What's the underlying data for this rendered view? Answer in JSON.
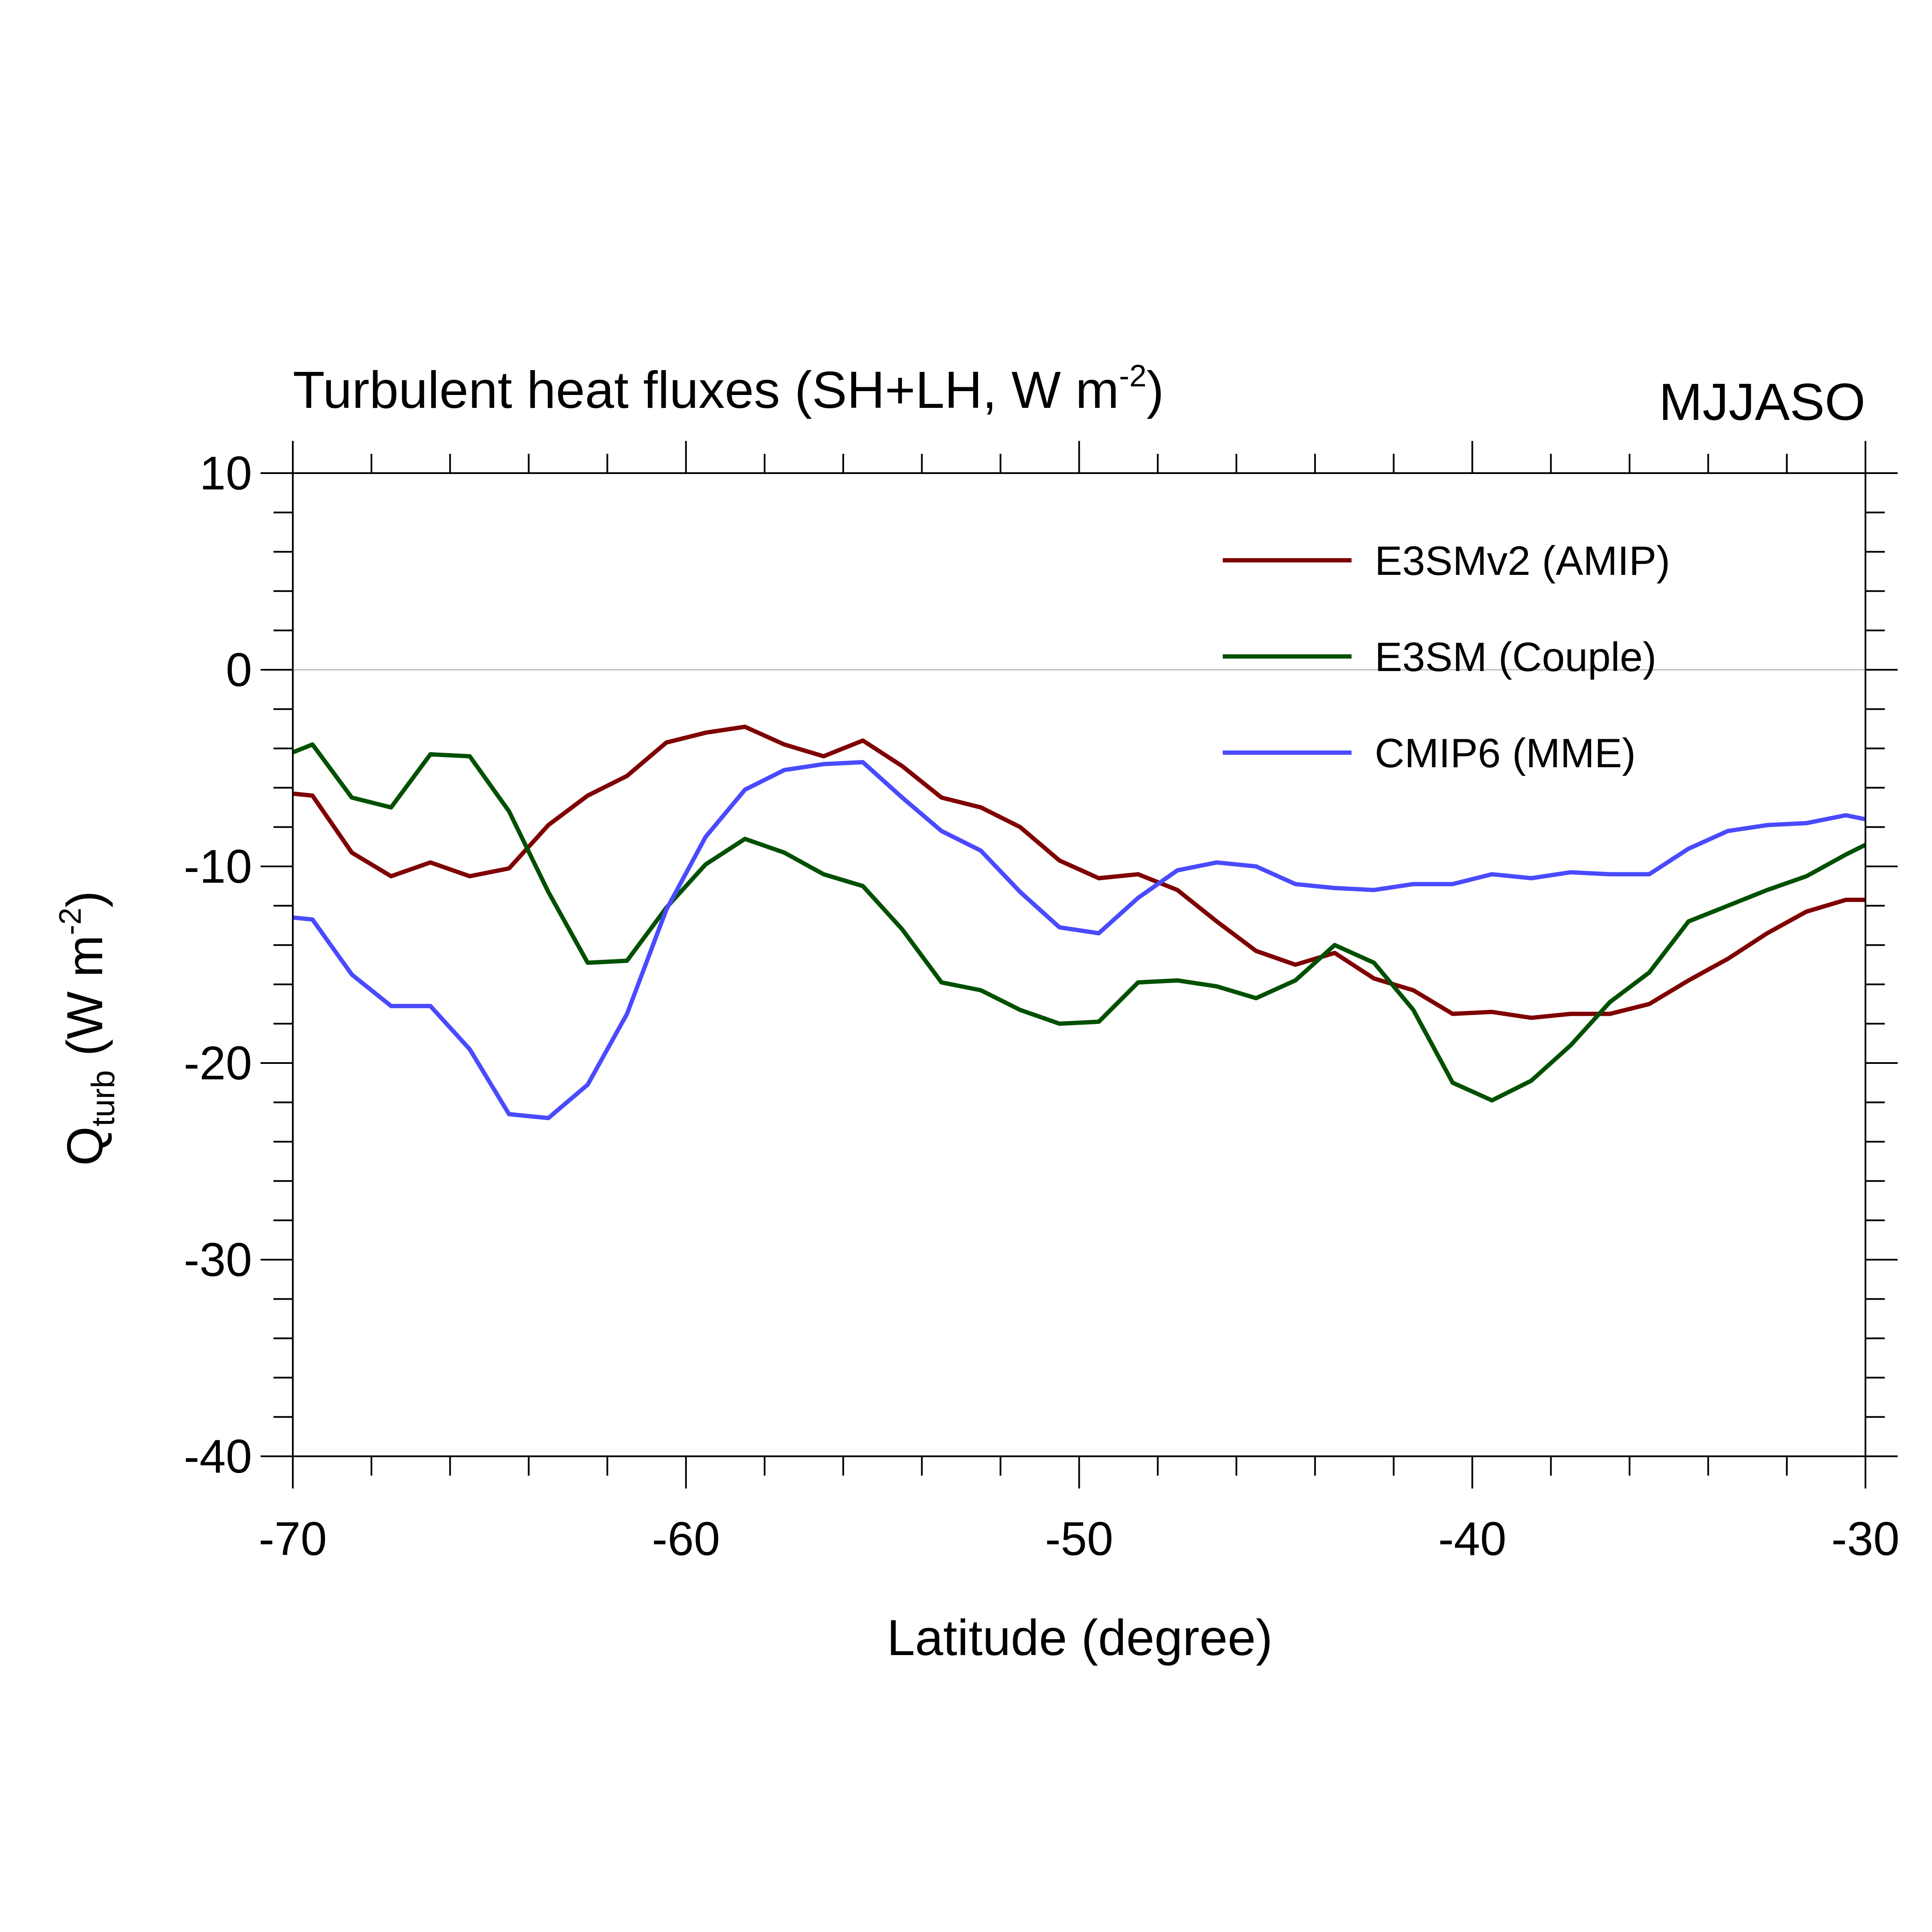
{
  "chart_data": {
    "type": "line",
    "title": "Turbulent heat fluxes (SH+LH, W m",
    "title_sup": "-2",
    "title_suffix": ")",
    "season": "MJJASO",
    "xlabel": "Latitude (degree)",
    "ylabel": {
      "main": "Q",
      "sub": "turb",
      "units": " (W m",
      "sup": "-2",
      "close": ")"
    },
    "xlim": [
      -70,
      -30
    ],
    "ylim": [
      -40,
      10
    ],
    "xticks": [
      -70,
      -60,
      -50,
      -40,
      -30
    ],
    "xtick_labels": [
      "-70",
      "-60",
      "-50",
      "-40",
      "-30"
    ],
    "yticks": [
      -40,
      -30,
      -20,
      -10,
      0,
      10
    ],
    "ytick_labels": [
      "-40",
      "-30",
      "-20",
      "-10",
      "0",
      "10"
    ],
    "reference_line": 0,
    "grid": false,
    "legend_position": "top-right",
    "x": [
      -70,
      -69.5,
      -68.5,
      -67.5,
      -66.5,
      -65.5,
      -64.5,
      -63.5,
      -62.5,
      -61.5,
      -60.5,
      -59.5,
      -58.5,
      -57.5,
      -56.5,
      -55.5,
      -54.5,
      -53.5,
      -52.5,
      -51.5,
      -50.5,
      -49.5,
      -48.5,
      -47.5,
      -46.5,
      -45.5,
      -44.5,
      -43.5,
      -42.5,
      -41.5,
      -40.5,
      -39.5,
      -38.5,
      -37.5,
      -36.5,
      -35.5,
      -34.5,
      -33.5,
      -32.5,
      -31.5,
      -30.5,
      -30
    ],
    "series": [
      {
        "name": "E3SMv2 (AMIP)",
        "color": "#7f0000",
        "values": [
          -6.3,
          -6.4,
          -9.3,
          -10.5,
          -9.8,
          -10.5,
          -10.1,
          -7.9,
          -6.4,
          -5.4,
          -3.7,
          -3.2,
          -2.9,
          -3.8,
          -4.4,
          -3.6,
          -4.9,
          -6.5,
          -7.0,
          -8.0,
          -9.7,
          -10.6,
          -10.4,
          -11.2,
          -12.8,
          -14.3,
          -15.0,
          -14.4,
          -15.7,
          -16.3,
          -17.5,
          -17.4,
          -17.7,
          -17.5,
          -17.5,
          -17.0,
          -15.8,
          -14.7,
          -13.4,
          -12.3,
          -11.7,
          -11.7
        ]
      },
      {
        "name": "E3SM (Couple)",
        "color": "#005000",
        "values": [
          -4.2,
          -3.8,
          -6.5,
          -7.0,
          -4.3,
          -4.4,
          -7.2,
          -11.3,
          -14.9,
          -14.8,
          -12.1,
          -9.9,
          -8.6,
          -9.3,
          -10.4,
          -11.0,
          -13.2,
          -15.9,
          -16.3,
          -17.3,
          -18.0,
          -17.9,
          -15.9,
          -15.8,
          -16.1,
          -16.7,
          -15.8,
          -14.0,
          -14.9,
          -17.3,
          -21.0,
          -21.9,
          -20.9,
          -19.1,
          -16.9,
          -15.4,
          -12.8,
          -12.0,
          -11.2,
          -10.5,
          -9.4,
          -8.9
        ]
      },
      {
        "name": "CMIP6 (MME)",
        "color": "#4a4aff",
        "values": [
          -12.6,
          -12.7,
          -15.5,
          -17.1,
          -17.1,
          -19.3,
          -22.6,
          -22.8,
          -21.1,
          -17.5,
          -12.2,
          -8.5,
          -6.1,
          -5.1,
          -4.8,
          -4.7,
          -6.5,
          -8.2,
          -9.2,
          -11.3,
          -13.1,
          -13.4,
          -11.6,
          -10.2,
          -9.8,
          -10.0,
          -10.9,
          -11.1,
          -11.2,
          -10.9,
          -10.9,
          -10.4,
          -10.6,
          -10.3,
          -10.4,
          -10.4,
          -9.1,
          -8.2,
          -7.9,
          -7.8,
          -7.4,
          -7.6
        ]
      }
    ]
  }
}
